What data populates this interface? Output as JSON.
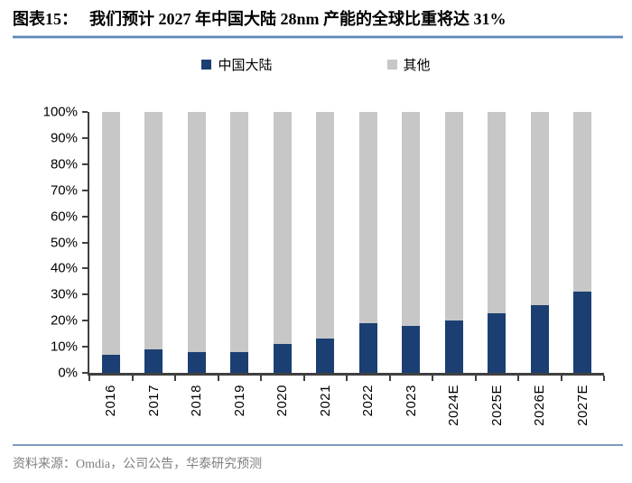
{
  "header": {
    "figure_label": "图表15：",
    "title": "我们预计 2027 年中国大陆 28nm 产能的全球比重将达 31%"
  },
  "legend": {
    "items": [
      {
        "label": "中国大陆",
        "color": "#1b3f73"
      },
      {
        "label": "其他",
        "color": "#c7c7c7"
      }
    ]
  },
  "chart_data": {
    "type": "bar",
    "stacked": true,
    "title": "中国大陆 28nm 产能全球比重",
    "unit": "percent",
    "categories": [
      "2016",
      "2017",
      "2018",
      "2019",
      "2020",
      "2021",
      "2022",
      "2023",
      "2024E",
      "2025E",
      "2026E",
      "2027E"
    ],
    "series": [
      {
        "name": "中国大陆",
        "color": "#1b3f73",
        "values": [
          7,
          9,
          8,
          8,
          11,
          13,
          19,
          18,
          20,
          23,
          26,
          31
        ]
      },
      {
        "name": "其他",
        "color": "#c7c7c7",
        "values": [
          93,
          91,
          92,
          92,
          89,
          87,
          81,
          82,
          80,
          77,
          74,
          69
        ]
      }
    ],
    "y_axis": {
      "min": 0,
      "max": 100,
      "step": 10,
      "tick_labels": [
        "0%",
        "10%",
        "20%",
        "30%",
        "40%",
        "50%",
        "60%",
        "70%",
        "80%",
        "90%",
        "100%"
      ],
      "grid": false
    },
    "legend_position": "top"
  },
  "footer": {
    "source": "资料来源：Omdia，公司公告，华泰研究预测"
  }
}
